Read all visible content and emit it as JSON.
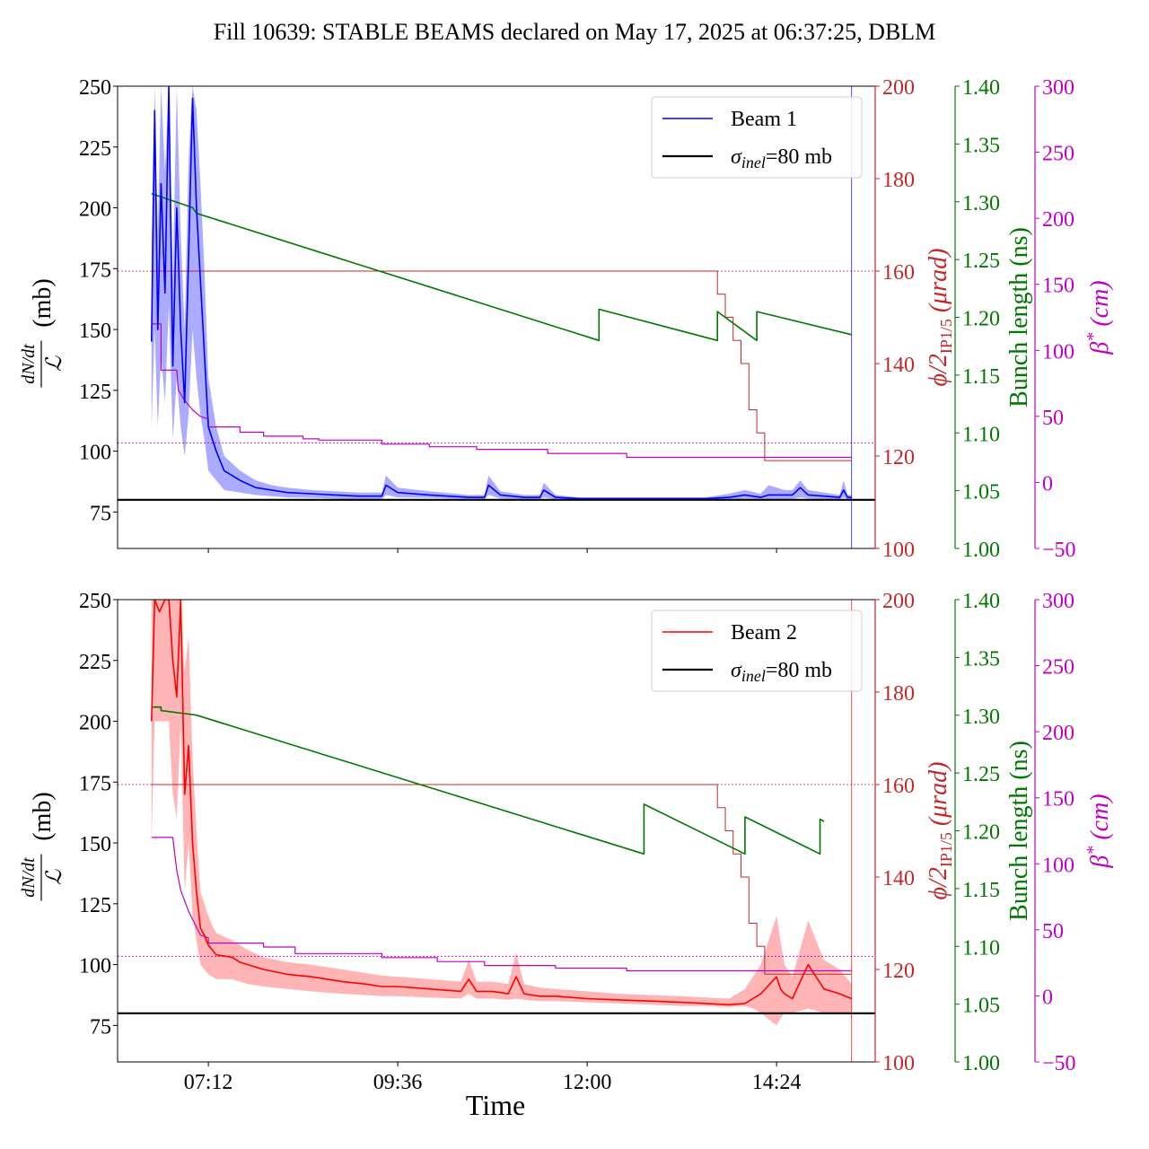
{
  "title": "Fill 10639: STABLE BEAMS declared on May 17, 2025 at 06:37:25, DBLM",
  "colors": {
    "beam1": "#0000ff",
    "beam1_band": "#8f8fff",
    "beam2": "#ff0000",
    "beam2_band": "#ff9c9c",
    "sigma": "#000000",
    "crossing": "#c0282a",
    "bunch": "#007700",
    "beta": "#c000c0"
  },
  "axes_text": {
    "ylabel_main_num": "dN/dt",
    "ylabel_main_den": "ℒ",
    "ylabel_main_unit": "(mb)",
    "ylabel_crossing_html": "ϕ/2IP1/5 (μrad)",
    "ylabel_bunch": "Bunch length (ns)",
    "ylabel_beta": "β* (cm)",
    "xlabel": "Time",
    "xticks": [
      "07:12",
      "09:36",
      "12:00",
      "14:24"
    ]
  },
  "chart_data": [
    {
      "type": "line",
      "panel": "top",
      "xlabel": "",
      "x_unit": "hours of day",
      "xlim": [
        6.05,
        15.65
      ],
      "legend": {
        "placement": "top-right",
        "entries": [
          "Beam 1",
          "σinel=80 mb"
        ]
      },
      "axes": {
        "left": {
          "label": "dN/dt / ℒ (mb)",
          "ylim": [
            60,
            250
          ],
          "ticks": [
            75,
            100,
            125,
            150,
            175,
            200,
            225,
            250
          ]
        },
        "right1": {
          "label": "ϕ/2IP1/5 (μrad)",
          "ylim": [
            100,
            200
          ],
          "ticks": [
            100,
            120,
            140,
            160,
            180,
            200
          ]
        },
        "right2": {
          "label": "Bunch length (ns)",
          "ylim": [
            1.0,
            1.4
          ],
          "ticks": [
            "1.00",
            "1.05",
            "1.10",
            "1.15",
            "1.20",
            "1.25",
            "1.30",
            "1.35",
            "1.40"
          ]
        },
        "right3": {
          "label": "β* (cm)",
          "ylim": [
            -50,
            300
          ],
          "ticks": [
            -50,
            0,
            50,
            100,
            150,
            200,
            250,
            300
          ]
        }
      },
      "series": [
        {
          "name": "Beam 1",
          "axis": "left",
          "role": "main",
          "x": [
            6.48,
            6.52,
            6.56,
            6.6,
            6.65,
            6.7,
            6.75,
            6.8,
            6.85,
            6.9,
            6.95,
            7.0,
            7.05,
            7.1,
            7.15,
            7.2,
            7.3,
            7.4,
            7.5,
            7.6,
            7.8,
            8.0,
            8.2,
            8.5,
            8.8,
            9.1,
            9.4,
            9.45,
            9.6,
            10.0,
            10.5,
            10.7,
            10.75,
            10.9,
            11.2,
            11.4,
            11.45,
            11.6,
            11.9,
            12.5,
            13.0,
            13.5,
            13.8,
            14.0,
            14.2,
            14.3,
            14.5,
            14.6,
            14.7,
            14.8,
            15.0,
            15.2,
            15.25,
            15.3,
            15.35
          ],
          "y": [
            145,
            240,
            150,
            210,
            165,
            250,
            135,
            200,
            150,
            120,
            180,
            245,
            200,
            170,
            140,
            110,
            100,
            92,
            90,
            88,
            85,
            84,
            83,
            82.5,
            82,
            81.5,
            81.5,
            86,
            83,
            82,
            81,
            81,
            86,
            82,
            81,
            81,
            84,
            81,
            80.5,
            80.5,
            80.5,
            80.5,
            81,
            82,
            81,
            82,
            82,
            82,
            85,
            82,
            81.5,
            81,
            84,
            81,
            81
          ],
          "low": [
            110,
            150,
            110,
            140,
            120,
            160,
            105,
            130,
            110,
            98,
            115,
            150,
            130,
            115,
            105,
            92,
            88,
            84,
            83.5,
            83,
            82,
            81.5,
            81,
            80.8,
            80.5,
            80.3,
            80.3,
            82,
            81,
            80.8,
            80.3,
            80.3,
            82,
            80.5,
            80.3,
            80.3,
            81,
            80.2,
            80,
            80,
            80,
            80,
            80,
            80.5,
            80.2,
            80.3,
            80.3,
            80.3,
            81,
            80.5,
            80.2,
            80.2,
            81,
            80.2,
            80.2
          ],
          "high": [
            185,
            250,
            190,
            250,
            215,
            250,
            170,
            250,
            190,
            150,
            220,
            250,
            240,
            210,
            175,
            130,
            110,
            98,
            95,
            92,
            88,
            86,
            85,
            84,
            83.5,
            83,
            83,
            90,
            85,
            83.5,
            82,
            82,
            90,
            83.5,
            82,
            82,
            87,
            82,
            81,
            81,
            81,
            81,
            82.5,
            84,
            82.5,
            86,
            84,
            84,
            88,
            84,
            83,
            82,
            88,
            82,
            82
          ]
        },
        {
          "name": "σinel=80 mb",
          "axis": "left",
          "role": "reference",
          "x": [
            6.05,
            15.65
          ],
          "y": [
            80,
            80
          ]
        },
        {
          "name": "",
          "axis": "right1",
          "role": "crossing-angle",
          "x": [
            6.48,
            13.65,
            13.65,
            13.75,
            13.75,
            13.85,
            13.85,
            13.95,
            13.95,
            14.05,
            14.05,
            14.15,
            14.15,
            14.25,
            14.25,
            15.35
          ],
          "y": [
            160,
            160,
            155,
            155,
            150,
            150,
            145,
            145,
            140,
            140,
            130,
            130,
            125,
            125,
            119,
            119
          ]
        },
        {
          "name": "",
          "axis": "right1",
          "role": "crossing-angle-reference",
          "x": [
            6.05,
            15.65
          ],
          "y": [
            160,
            160
          ]
        },
        {
          "name": "",
          "axis": "right2",
          "role": "bunch-length",
          "x": [
            6.48,
            7.0,
            7.05,
            12.15,
            12.15,
            13.65,
            13.65,
            14.15,
            14.15,
            15.35
          ],
          "y": [
            1.307,
            1.295,
            1.29,
            1.18,
            1.207,
            1.18,
            1.205,
            1.18,
            1.205,
            1.185
          ]
        },
        {
          "name": "",
          "axis": "right3",
          "role": "beta-star",
          "x": [
            6.48,
            6.6,
            6.6,
            6.8,
            6.82,
            6.9,
            7.0,
            7.1,
            7.2,
            7.2,
            7.6,
            7.6,
            7.9,
            7.9,
            8.4,
            8.4,
            8.6,
            8.6,
            9.4,
            9.4,
            10.0,
            10.0,
            10.6,
            10.6,
            11.5,
            11.5,
            12.5,
            12.5,
            15.35
          ],
          "y": [
            120,
            120,
            85,
            85,
            70,
            62,
            55,
            50,
            48,
            42,
            42,
            38,
            38,
            35,
            35,
            33,
            33,
            32,
            32,
            29,
            29,
            27,
            27,
            25,
            25,
            22,
            22,
            19,
            19
          ]
        },
        {
          "name": "",
          "axis": "right3",
          "role": "beta-star-reference",
          "x": [
            6.05,
            15.65
          ],
          "y": [
            30,
            30
          ]
        }
      ]
    },
    {
      "type": "line",
      "panel": "bottom",
      "xlabel": "Time",
      "x_unit": "hours of day",
      "xlim": [
        6.05,
        15.65
      ],
      "xticks": [
        "07:12",
        "09:36",
        "12:00",
        "14:24"
      ],
      "legend": {
        "placement": "top-right",
        "entries": [
          "Beam 2",
          "σinel=80 mb"
        ]
      },
      "axes": {
        "left": {
          "label": "dN/dt / ℒ (mb)",
          "ylim": [
            60,
            250
          ],
          "ticks": [
            75,
            100,
            125,
            150,
            175,
            200,
            225,
            250
          ]
        },
        "right1": {
          "label": "ϕ/2IP1/5 (μrad)",
          "ylim": [
            100,
            200
          ],
          "ticks": [
            100,
            120,
            140,
            160,
            180,
            200
          ]
        },
        "right2": {
          "label": "Bunch length (ns)",
          "ylim": [
            1.0,
            1.4
          ],
          "ticks": [
            "1.00",
            "1.05",
            "1.10",
            "1.15",
            "1.20",
            "1.25",
            "1.30",
            "1.35",
            "1.40"
          ]
        },
        "right3": {
          "label": "β* (cm)",
          "ylim": [
            -50,
            300
          ],
          "ticks": [
            -50,
            0,
            50,
            100,
            150,
            200,
            250,
            300
          ]
        }
      },
      "series": [
        {
          "name": "Beam 2",
          "axis": "left",
          "role": "main",
          "x": [
            6.48,
            6.52,
            6.58,
            6.65,
            6.7,
            6.75,
            6.8,
            6.85,
            6.9,
            6.95,
            7.0,
            7.05,
            7.1,
            7.15,
            7.2,
            7.25,
            7.3,
            7.5,
            7.6,
            7.7,
            7.9,
            8.2,
            8.5,
            8.9,
            9.2,
            9.4,
            9.6,
            10.0,
            10.4,
            10.5,
            10.6,
            10.8,
            11.0,
            11.1,
            11.2,
            11.4,
            11.6,
            12.0,
            12.4,
            12.8,
            13.2,
            13.5,
            13.8,
            14.0,
            14.1,
            14.2,
            14.4,
            14.45,
            14.5,
            14.6,
            14.8,
            15.0,
            15.2,
            15.35
          ],
          "y": [
            200,
            250,
            245,
            250,
            250,
            225,
            210,
            250,
            170,
            190,
            150,
            130,
            115,
            112,
            108,
            106,
            104,
            103,
            101,
            100,
            98,
            96,
            95,
            93,
            92,
            91,
            91,
            90,
            89,
            94,
            89,
            89,
            88,
            95,
            88,
            87,
            87,
            86,
            85.5,
            85,
            84.5,
            84,
            83.5,
            84,
            86,
            88,
            95,
            90,
            88,
            86,
            100,
            90,
            88,
            86
          ],
          "low": [
            150,
            200,
            200,
            200,
            200,
            170,
            160,
            200,
            130,
            150,
            120,
            110,
            100,
            98,
            96,
            95,
            94,
            94,
            93,
            92,
            91,
            90,
            89,
            88,
            87.5,
            87,
            87,
            86.5,
            86,
            88,
            86,
            86,
            85.5,
            86,
            85.5,
            85,
            85,
            84.5,
            84,
            83.5,
            83,
            83,
            82.5,
            83,
            82,
            80,
            75,
            78,
            80,
            80,
            82,
            80,
            80,
            80
          ],
          "high": [
            250,
            250,
            250,
            250,
            250,
            250,
            250,
            250,
            220,
            235,
            185,
            155,
            130,
            125,
            120,
            116,
            113,
            110,
            108,
            106,
            103,
            101,
            100,
            98,
            96.5,
            95.5,
            95,
            94,
            93,
            102,
            93,
            93,
            92,
            105,
            92,
            90.5,
            90,
            89,
            88,
            87.5,
            87,
            86.5,
            86,
            90,
            95,
            100,
            120,
            110,
            100,
            95,
            118,
            102,
            98,
            92
          ]
        },
        {
          "name": "σinel=80 mb",
          "axis": "left",
          "role": "reference",
          "x": [
            6.05,
            15.65
          ],
          "y": [
            80,
            80
          ]
        },
        {
          "name": "",
          "axis": "right1",
          "role": "crossing-angle",
          "x": [
            6.48,
            13.65,
            13.65,
            13.75,
            13.75,
            13.85,
            13.85,
            13.95,
            13.95,
            14.05,
            14.05,
            14.15,
            14.15,
            14.25,
            14.25,
            15.35
          ],
          "y": [
            160,
            160,
            155,
            155,
            150,
            150,
            145,
            145,
            140,
            140,
            130,
            130,
            125,
            125,
            119,
            119
          ]
        },
        {
          "name": "",
          "axis": "right1",
          "role": "crossing-angle-reference",
          "x": [
            6.05,
            15.65
          ],
          "y": [
            160,
            160
          ]
        },
        {
          "name": "",
          "axis": "right2",
          "role": "bunch-length",
          "x": [
            6.48,
            6.6,
            6.6,
            6.95,
            7.05,
            12.72,
            12.72,
            14.0,
            14.0,
            14.95,
            14.95,
            15.0
          ],
          "y": [
            1.307,
            1.307,
            1.304,
            1.301,
            1.3,
            1.18,
            1.223,
            1.18,
            1.212,
            1.18,
            1.21,
            1.208
          ]
        },
        {
          "name": "",
          "axis": "right3",
          "role": "beta-star",
          "x": [
            6.48,
            6.75,
            6.8,
            6.85,
            6.9,
            6.95,
            7.0,
            7.05,
            7.1,
            7.2,
            7.2,
            7.9,
            7.9,
            8.3,
            8.3,
            9.4,
            9.4,
            10.1,
            10.1,
            10.7,
            10.7,
            11.6,
            11.6,
            12.5,
            12.5,
            15.35
          ],
          "y": [
            120,
            120,
            95,
            80,
            72,
            64,
            58,
            52,
            46,
            44,
            40,
            40,
            37,
            37,
            32,
            32,
            29,
            29,
            26,
            26,
            23,
            23,
            21,
            21,
            19,
            19
          ]
        },
        {
          "name": "",
          "axis": "right3",
          "role": "beta-star-reference",
          "x": [
            6.05,
            15.65
          ],
          "y": [
            30,
            30
          ]
        }
      ]
    }
  ]
}
